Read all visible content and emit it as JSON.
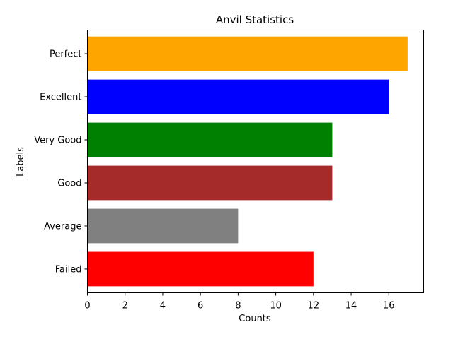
{
  "chart_data": {
    "type": "bar",
    "orientation": "horizontal",
    "title": "Anvil Statistics",
    "xlabel": "Counts",
    "ylabel": "Labels",
    "categories": [
      "Failed",
      "Average",
      "Good",
      "Very Good",
      "Excellent",
      "Perfect"
    ],
    "values": [
      12,
      8,
      13,
      13,
      16,
      17
    ],
    "colors": [
      "#ff0000",
      "#808080",
      "#a52a2a",
      "#008000",
      "#0000ff",
      "#ffa500"
    ],
    "xlim": [
      0,
      17.85
    ],
    "xticks": [
      0,
      2,
      4,
      6,
      8,
      10,
      12,
      14,
      16
    ],
    "grid": false,
    "legend": "none"
  }
}
